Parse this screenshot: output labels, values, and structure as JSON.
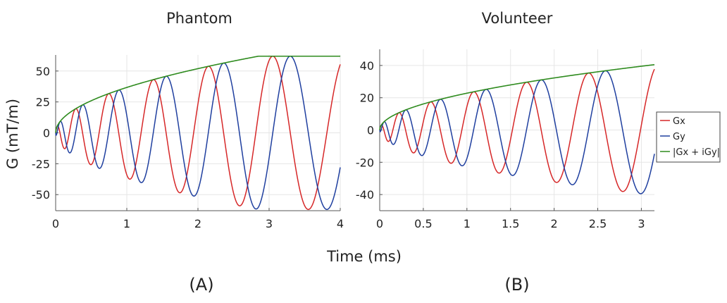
{
  "colors": {
    "gx": "#d62728",
    "gy": "#1f3f9f",
    "envelope": "#2e8b1e"
  },
  "figure": {
    "xlabel": "Time (ms)",
    "ylabel": "G (mT/m)"
  },
  "legend": {
    "items": [
      "Gx",
      "Gy",
      "|Gx + iGy|"
    ]
  },
  "chart_data": [
    {
      "type": "line",
      "title": "Phantom",
      "panel_label": "(A)",
      "xlabel": "Time (ms)",
      "ylabel": "G (mT/m)",
      "xlim": [
        0,
        4
      ],
      "ylim": [
        -63,
        63
      ],
      "xticks": [
        0,
        1,
        2,
        3,
        4
      ],
      "xtick_labels": [
        "0",
        "1",
        "2",
        "3",
        "4"
      ],
      "yticks": [
        50,
        25,
        0,
        -25,
        -50
      ],
      "ytick_labels": [
        "50",
        "25",
        "0",
        "-25",
        "-50"
      ],
      "amplitude": {
        "max": 62,
        "reach_time": 2.85,
        "exponent": 0.5
      },
      "phase": {
        "coef": 16.89,
        "exponent": 0.6
      },
      "series": [
        {
          "name": "Gx",
          "description": "G(t)·sin(φ(t)), spiral readout x-gradient"
        },
        {
          "name": "Gy",
          "description": "-G(t)·cos(φ(t)), spiral readout y-gradient"
        },
        {
          "name": "|Gx + iGy|",
          "description": "envelope G(t), rises as sqrt to 62 mT/m at t≈2.85 ms then flat"
        }
      ]
    },
    {
      "type": "line",
      "title": "Volunteer",
      "panel_label": "(B)",
      "xlabel": "Time (ms)",
      "ylabel": "G (mT/m)",
      "xlim": [
        0,
        3.15
      ],
      "ylim": [
        -50,
        50
      ],
      "xticks": [
        0,
        0.5,
        1,
        1.5,
        2,
        2.5,
        3
      ],
      "xtick_labels": [
        "0",
        "0.5",
        "1",
        "1.5",
        "2",
        "2.5",
        "3"
      ],
      "yticks": [
        40,
        20,
        0,
        -20,
        -40
      ],
      "ytick_labels": [
        "40",
        "20",
        "0",
        "-20",
        "-40"
      ],
      "amplitude": {
        "max": 40.5,
        "reach_time": 3.15,
        "exponent": 0.5
      },
      "phase": {
        "coef": 19.54,
        "exponent": 0.6
      },
      "series": [
        {
          "name": "Gx",
          "description": "G(t)·sin(φ(t))"
        },
        {
          "name": "Gy",
          "description": "-G(t)·cos(φ(t))"
        },
        {
          "name": "|Gx + iGy|",
          "description": "envelope G(t), rises as sqrt to ~40 mT/m at 3.15 ms"
        }
      ]
    }
  ]
}
